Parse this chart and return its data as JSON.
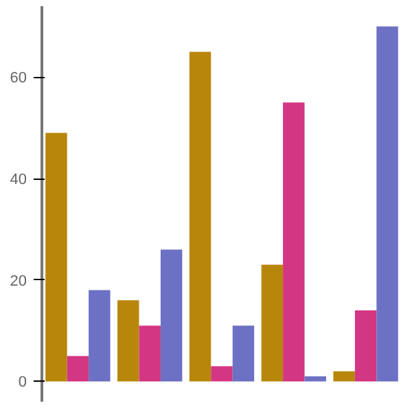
{
  "chart_data": {
    "type": "bar",
    "categories": [
      null,
      null,
      null,
      null,
      null
    ],
    "series": [
      {
        "color": "#b8860b",
        "values": [
          49,
          16,
          65,
          23,
          2
        ]
      },
      {
        "color": "#d33682",
        "values": [
          5,
          11,
          3,
          55,
          14
        ]
      },
      {
        "color": "#6c71c4",
        "values": [
          18,
          26,
          11,
          1,
          70
        ]
      }
    ],
    "ylim": [
      -4,
      74
    ],
    "yticks": [
      0,
      20,
      40,
      60
    ],
    "grid": false,
    "tick_labels": "y"
  }
}
